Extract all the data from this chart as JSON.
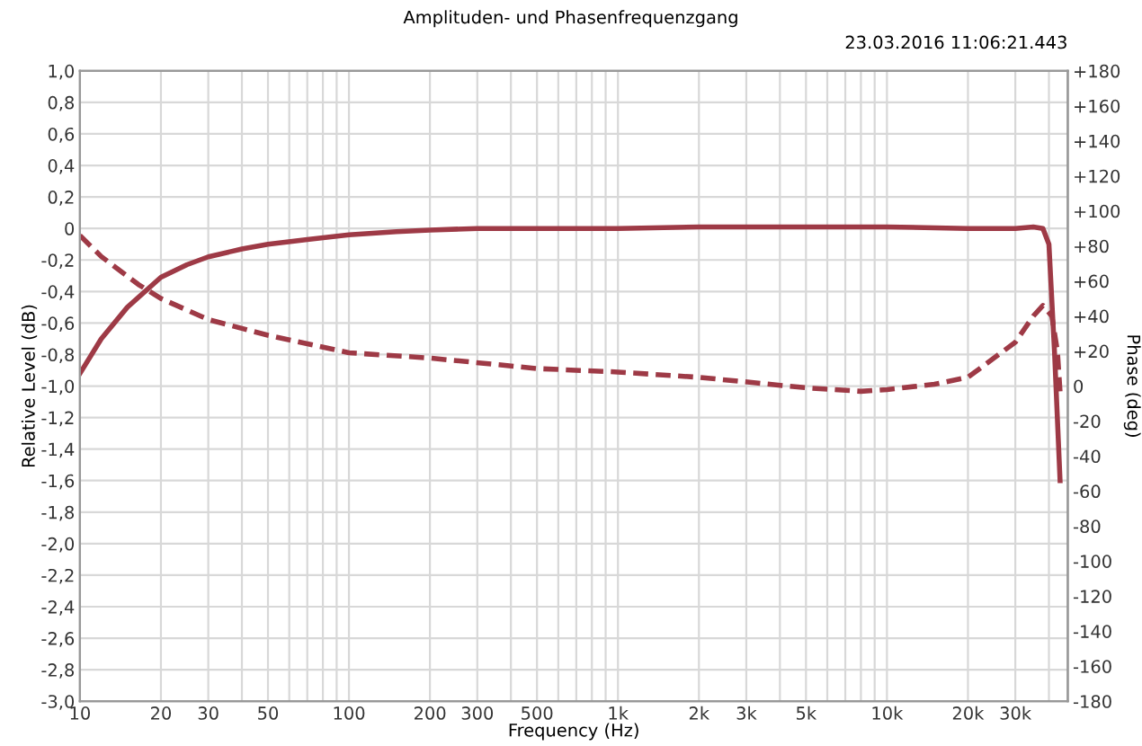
{
  "chart_data": {
    "type": "line",
    "title": "Amplituden- und Phasenfrequenzgang",
    "annotations": [
      "23.03.2016 11:06:21.443"
    ],
    "xlabel": "Frequency (Hz)",
    "ylabel": "Relative Level (dB)",
    "y2label": "Phase (deg)",
    "log": "x",
    "grid": true,
    "marker": "none",
    "xlim": [
      10,
      47000
    ],
    "xticks": [
      10,
      20,
      30,
      {
        "value": 40,
        "label": null
      },
      50,
      {
        "value": 60,
        "label": null
      },
      {
        "value": 70,
        "label": null
      },
      {
        "value": 80,
        "label": null
      },
      {
        "value": 90,
        "label": null
      },
      100,
      200,
      300,
      {
        "value": 400,
        "label": null
      },
      500,
      {
        "value": 600,
        "label": null
      },
      {
        "value": 700,
        "label": null
      },
      {
        "value": 800,
        "label": null
      },
      {
        "value": 900,
        "label": null
      },
      {
        "value": 1000,
        "label": "1k"
      },
      {
        "value": 2000,
        "label": "2k"
      },
      {
        "value": 3000,
        "label": "3k"
      },
      {
        "value": 4000,
        "label": null
      },
      {
        "value": 5000,
        "label": "5k"
      },
      {
        "value": 6000,
        "label": null
      },
      {
        "value": 7000,
        "label": null
      },
      {
        "value": 8000,
        "label": null
      },
      {
        "value": 9000,
        "label": null
      },
      {
        "value": 10000,
        "label": "10k"
      },
      {
        "value": 20000,
        "label": "20k"
      },
      {
        "value": 30000,
        "label": "30k"
      },
      {
        "value": 40000,
        "label": null
      }
    ],
    "ylim": [
      -3.0,
      1.0
    ],
    "yticks": [
      {
        "value": 1.0,
        "label": "1,0"
      },
      {
        "value": 0.8,
        "label": "0,8"
      },
      {
        "value": 0.6,
        "label": "0,6"
      },
      {
        "value": 0.4,
        "label": "0,4"
      },
      {
        "value": 0.2,
        "label": "0,2"
      },
      0,
      {
        "value": -0.2,
        "label": "-0,2"
      },
      {
        "value": -0.4,
        "label": "-0,4"
      },
      {
        "value": -0.6,
        "label": "-0,6"
      },
      {
        "value": -0.8,
        "label": "-0,8"
      },
      {
        "value": -1.0,
        "label": "-1,0"
      },
      {
        "value": -1.2,
        "label": "-1,2"
      },
      {
        "value": -1.4,
        "label": "-1,4"
      },
      {
        "value": -1.6,
        "label": "-1,6"
      },
      {
        "value": -1.8,
        "label": "-1,8"
      },
      {
        "value": -2.0,
        "label": "-2,0"
      },
      {
        "value": -2.2,
        "label": "-2,2"
      },
      {
        "value": -2.4,
        "label": "-2,4"
      },
      {
        "value": -2.6,
        "label": "-2,6"
      },
      {
        "value": -2.8,
        "label": "-2,8"
      },
      {
        "value": -3.0,
        "label": "-3,0"
      }
    ],
    "y2lim": [
      -180,
      180
    ],
    "y2ticks": [
      {
        "value": 180,
        "label": "+180"
      },
      {
        "value": 160,
        "label": "+160"
      },
      {
        "value": 140,
        "label": "+140"
      },
      {
        "value": 120,
        "label": "+120"
      },
      {
        "value": 100,
        "label": "+100"
      },
      {
        "value": 80,
        "label": "+80"
      },
      {
        "value": 60,
        "label": "+60"
      },
      {
        "value": 40,
        "label": "+40"
      },
      {
        "value": 20,
        "label": "+20"
      },
      0,
      -20,
      -40,
      -60,
      -80,
      -100,
      -120,
      -140,
      -160,
      -180
    ],
    "series": [
      {
        "color": "#9e3a46",
        "line_style": "solid",
        "x": [
          10,
          12,
          15,
          20,
          25,
          30,
          40,
          50,
          70,
          100,
          150,
          200,
          300,
          400,
          1000,
          2000,
          5000,
          10000,
          20000,
          30000,
          35000,
          38000,
          40000,
          42000,
          44000
        ],
        "values": [
          -0.92,
          -0.7,
          -0.5,
          -0.31,
          -0.23,
          -0.18,
          -0.13,
          -0.1,
          -0.07,
          -0.04,
          -0.02,
          -0.01,
          0.0,
          0.0,
          0.0,
          0.01,
          0.01,
          0.01,
          0.0,
          0.0,
          0.01,
          0.0,
          -0.1,
          -0.8,
          -1.6
        ]
      },
      {
        "color": "#9e3a46",
        "line_style": "dashed",
        "axis": "y2",
        "x": [
          10,
          12,
          16.5,
          20,
          30,
          50,
          100,
          200,
          500,
          1000,
          2000,
          5000,
          8000,
          10000,
          15000,
          20000,
          25000,
          30000,
          35000,
          38000,
          41000,
          43000,
          44000
        ],
        "values": [
          86,
          74,
          58,
          50,
          38,
          29,
          19,
          16,
          10,
          8,
          5,
          -1,
          -3,
          -2,
          1,
          5,
          16,
          25,
          40,
          46,
          40,
          20,
          -3
        ]
      }
    ]
  }
}
